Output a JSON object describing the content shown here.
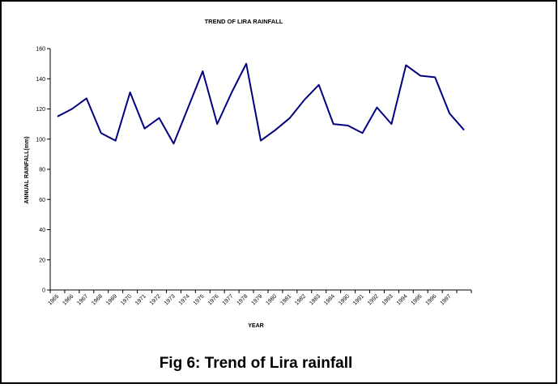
{
  "chart_data": {
    "type": "line",
    "title": "TREND OF LIRA RAINFALL",
    "x_label": "YEAR",
    "y_label": "ANNUAL RAINFALL(mm)",
    "caption": "Fig 6: Trend of Lira rainfall",
    "categories": [
      "1965",
      "1966",
      "1967",
      "1968",
      "1969",
      "1970",
      "1971",
      "1972",
      "1973",
      "1974",
      "1975",
      "1976",
      "1977",
      "1978",
      "1979",
      "1980",
      "1981",
      "1982",
      "1983",
      "1984",
      "1990",
      "1991",
      "1992",
      "1993",
      "1994",
      "1995",
      "1996",
      "1997",
      null
    ],
    "series": [
      {
        "name": "Rainfall",
        "color": "#000080",
        "values": [
          115,
          120,
          127,
          104,
          99,
          131,
          107,
          114,
          97,
          121,
          145,
          110,
          131,
          150,
          99,
          106,
          114,
          126,
          136,
          110,
          109,
          104,
          121,
          110,
          149,
          142,
          141,
          117,
          106
        ]
      }
    ],
    "ylim": [
      0,
      160
    ],
    "yticks": [
      0,
      20,
      40,
      60,
      80,
      100,
      120,
      140,
      160
    ]
  }
}
